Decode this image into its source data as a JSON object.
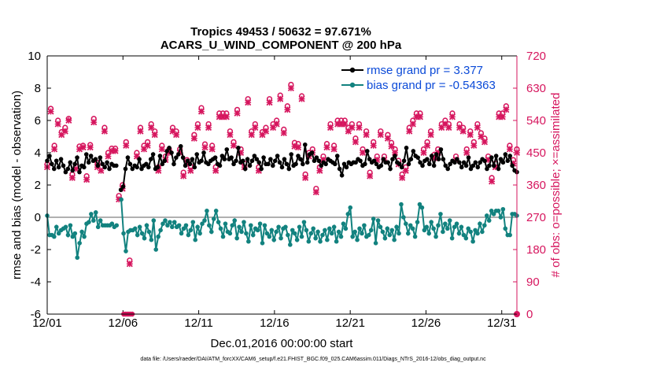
{
  "chart_data": {
    "type": "line",
    "title": "Tropics 49453 / 50632 = 97.671%",
    "subtitle": "ACARS_U_WIND_COMPONENT @ 200 hPa",
    "xlabel": "Dec.01,2016 00:00:00 start",
    "ylabel": "rmse and bias (model - observation)",
    "ylabel_right": "# of obs: o=possible; ×=assimilated",
    "xlim": [
      1,
      32
    ],
    "ylim": [
      -6,
      10
    ],
    "ylim_right": [
      0,
      720
    ],
    "x_ticks": [
      1,
      6,
      11,
      16,
      21,
      26,
      31
    ],
    "x_tick_labels": [
      "12/01",
      "12/06",
      "12/11",
      "12/16",
      "12/21",
      "12/26",
      "12/31"
    ],
    "y_ticks": [
      "-6",
      "-4",
      "-2",
      "0",
      "2",
      "4",
      "6",
      "8",
      "10"
    ],
    "y_ticks_right": [
      "0",
      "90",
      "180",
      "270",
      "360",
      "450",
      "540",
      "630",
      "720"
    ],
    "legend_location": "top-right",
    "footer": "data file: /Users/raeder/DAI/ATM_forcXX/CAM6_setup/f.e21.FHIST_BGC.f09_025.CAM6assim.011/Diags_NTrS_2016-12/obs_diag_output.nc",
    "colors": {
      "rmse": "#000000",
      "bias": "#12827f",
      "obs": "#d6165e",
      "legend_text": "#0b4ad8",
      "zero_line": "#b0b0b0"
    },
    "series": [
      {
        "name": "rmse grand pr = 3.377",
        "marker": "filled-circle",
        "values": [
          3.5,
          3.8,
          3.3,
          3.0,
          3.5,
          3.1,
          3.6,
          3.2,
          2.8,
          3.0,
          3.4,
          2.9,
          3.3,
          3.7,
          2.8,
          3.2,
          3.1,
          3.9,
          3.4,
          3.8,
          3.5,
          3.6,
          3.2,
          3.7,
          3.3,
          3.1,
          3.4,
          3.0,
          3.3,
          3.2,
          3.2,
          null,
          1.7,
          1.9,
          3.0,
          3.7,
          3.3,
          3.0,
          3.2,
          3.1,
          3.6,
          3.0,
          3.2,
          3.3,
          3.1,
          3.6,
          3.9,
          3.0,
          3.1,
          3.8,
          3.3,
          3.5,
          4.1,
          4.3,
          4.0,
          3.3,
          3.7,
          3.9,
          4.4,
          3.7,
          3.2,
          3.5,
          3.3,
          3.6,
          3.1,
          3.9,
          3.4,
          3.5,
          4.0,
          3.4,
          3.3,
          3.5,
          3.6,
          3.7,
          3.3,
          3.2,
          3.8,
          3.6,
          4.2,
          3.6,
          3.7,
          3.3,
          3.5,
          4.3,
          3.4,
          3.5,
          3.0,
          3.6,
          3.2,
          3.5,
          3.8,
          3.6,
          3.4,
          3.0,
          3.7,
          3.3,
          3.3,
          3.6,
          3.2,
          3.5,
          3.8,
          3.4,
          3.1,
          3.6,
          3.3,
          3.0,
          3.9,
          3.2,
          3.3,
          3.8,
          3.6,
          3.3,
          4.5,
          3.4,
          3.9,
          4.0,
          3.5,
          3.7,
          3.5,
          3.2,
          3.4,
          3.3,
          3.6,
          3.5,
          3.4,
          3.3,
          3.8,
          3.0,
          2.6,
          3.3,
          3.1,
          3.4,
          3.3,
          3.4,
          3.4,
          3.6,
          3.5,
          3.2,
          3.3,
          4.1,
          3.6,
          3.4,
          3.5,
          3.3,
          3.1,
          3.2,
          3.6,
          3.4,
          3.4,
          3.0,
          3.6,
          3.8,
          3.4,
          3.3,
          3.1,
          3.5,
          4.3,
          3.3,
          3.6,
          4.1,
          3.8,
          3.7,
          3.4,
          3.2,
          3.5,
          3.6,
          3.3,
          3.8,
          3.2,
          3.9,
          3.6,
          4.2,
          3.6,
          3.2,
          3.0,
          3.3,
          3.5,
          3.4,
          3.6,
          3.4,
          3.1,
          3.4,
          3.2,
          3.7,
          3.0,
          3.2,
          3.4,
          3.1,
          3.4,
          3.6,
          3.5,
          3.0,
          3.2,
          3.7,
          3.2,
          3.8,
          3.0,
          3.6,
          3.4,
          3.9,
          3.5,
          3.8,
          3.2,
          2.9,
          2.8
        ]
      },
      {
        "name": "bias grand pr = -0.54363",
        "marker": "filled-circle",
        "values": [
          0.1,
          -1.1,
          -1.1,
          -1.2,
          -0.6,
          -1.0,
          -0.8,
          -0.7,
          -0.6,
          -1.1,
          -0.5,
          -1.2,
          -1.0,
          -2.5,
          -1.6,
          -0.9,
          -1.2,
          -0.4,
          -0.3,
          0.2,
          -0.2,
          0.3,
          -0.6,
          -0.2,
          -0.5,
          -0.5,
          -0.5,
          -0.5,
          -0.4,
          -0.6,
          -0.5,
          null,
          1.1,
          -1.0,
          -2.1,
          -0.9,
          -0.8,
          -0.8,
          -0.7,
          -1.1,
          -0.6,
          -1.0,
          -1.3,
          -0.5,
          -0.9,
          -1.4,
          -0.2,
          -2.0,
          -1.2,
          -0.8,
          -0.4,
          -0.2,
          -0.5,
          -0.3,
          -0.6,
          -0.3,
          -0.6,
          -0.5,
          -1.0,
          -0.7,
          -0.5,
          -1.1,
          -0.8,
          -0.3,
          -1.4,
          -0.6,
          -1.0,
          -0.4,
          -0.2,
          0.4,
          -0.5,
          -0.9,
          -0.1,
          0.4,
          -0.3,
          -0.7,
          -1.2,
          -0.4,
          -0.9,
          -1.0,
          -0.5,
          -0.2,
          -1.3,
          -0.6,
          -0.9,
          -0.3,
          -1.0,
          -1.5,
          -0.5,
          -1.1,
          -0.7,
          -0.8,
          -0.4,
          -1.6,
          -0.5,
          -1.0,
          -1.2,
          -0.8,
          -1.4,
          -0.9,
          -0.6,
          -1.3,
          -0.7,
          -0.6,
          -1.1,
          -1.7,
          -0.8,
          -1.0,
          -1.4,
          -0.6,
          -1.2,
          -0.3,
          -0.8,
          -1.5,
          -1.0,
          -0.7,
          -1.3,
          -0.9,
          -1.5,
          -1.1,
          -0.8,
          -1.4,
          -0.7,
          -1.0,
          -0.6,
          -1.5,
          -0.9,
          -1.2,
          -0.4,
          -0.7,
          0.2,
          0.6,
          -1.2,
          -0.9,
          -1.4,
          -0.7,
          -1.0,
          -0.5,
          -1.2,
          -1.1,
          -0.8,
          -0.1,
          -1.6,
          -0.2,
          -0.6,
          -0.9,
          -1.3,
          -0.7,
          -1.1,
          -0.8,
          -1.4,
          -0.6,
          -1.0,
          0.8,
          0.0,
          -0.4,
          -1.0,
          -0.5,
          -0.7,
          -1.2,
          -0.3,
          0.8,
          0.6,
          -0.8,
          -0.6,
          -1.0,
          -0.3,
          -0.7,
          -1.2,
          -0.5,
          0.2,
          -0.9,
          -0.4,
          -0.7,
          -0.2,
          -1.3,
          -0.6,
          -0.4,
          -1.0,
          -0.6,
          -1.1,
          -1.3,
          -0.7,
          -0.9,
          -1.5,
          -0.8,
          -1.0,
          -0.4,
          -0.9,
          -0.5,
          0.1,
          -0.2,
          0.4,
          0.2,
          0.4,
          0.4,
          0.0,
          0.5,
          -0.7,
          -1.1,
          -1.1,
          0.2,
          0.2,
          0.1
        ]
      },
      {
        "name": "obs possible",
        "marker": "open-circle",
        "axis": "right",
        "values": [
          418,
          573,
          470,
          540,
          508,
          520,
          545,
          390,
          412,
          468,
          470,
          385,
          472,
          545,
          422,
          410,
          520,
          450,
          462,
          462,
          330,
          360,
          480,
          150,
          null,
          450,
          520,
          470,
          480,
          530,
          510,
          410,
          470,
          440,
          460,
          520,
          510,
          460,
          395,
          430,
          412,
          500,
          530,
          575,
          474,
          530,
          470,
          410,
          560,
          560,
          560,
          510,
          480,
          570,
          460,
          420,
          600,
          510,
          530,
          410,
          508,
          520,
          600,
          530,
          540,
          610,
          515,
          580,
          640,
          478,
          475,
          608,
          390,
          450,
          460,
          350,
          410,
          440,
          475,
          530,
          470,
          540,
          540,
          540,
          520,
          530,
          490,
          530,
          460,
          510,
          395,
          480,
          440,
          510,
          440,
          500,
          478,
          460,
          428,
          390,
          410,
          520,
          540,
          560,
          560,
          460,
          480,
          510,
          445,
          460,
          530,
          540,
          530,
          560,
          440,
          530,
          520,
          460,
          510,
          480,
          530,
          505,
          490,
          440,
          380,
          420,
          560,
          560,
          580,
          470,
          430,
          460
        ]
      },
      {
        "name": "obs assimilated",
        "marker": "x",
        "axis": "right",
        "values": [
          410,
          565,
          460,
          530,
          500,
          510,
          540,
          380,
          405,
          460,
          465,
          375,
          465,
          535,
          410,
          400,
          510,
          440,
          455,
          455,
          320,
          350,
          470,
          140,
          null,
          440,
          510,
          460,
          470,
          520,
          500,
          400,
          460,
          430,
          450,
          510,
          500,
          450,
          385,
          420,
          400,
          490,
          520,
          565,
          465,
          520,
          460,
          400,
          550,
          550,
          550,
          500,
          470,
          560,
          450,
          410,
          590,
          500,
          520,
          400,
          500,
          510,
          590,
          520,
          530,
          600,
          505,
          570,
          630,
          468,
          465,
          600,
          380,
          440,
          450,
          340,
          400,
          430,
          465,
          520,
          460,
          530,
          530,
          530,
          510,
          520,
          480,
          520,
          450,
          500,
          385,
          470,
          430,
          500,
          430,
          490,
          468,
          450,
          418,
          380,
          400,
          510,
          530,
          550,
          550,
          450,
          470,
          500,
          435,
          450,
          520,
          530,
          520,
          550,
          430,
          520,
          510,
          450,
          500,
          470,
          520,
          495,
          480,
          430,
          370,
          410,
          550,
          550,
          570,
          460,
          420,
          450
        ]
      }
    ]
  }
}
